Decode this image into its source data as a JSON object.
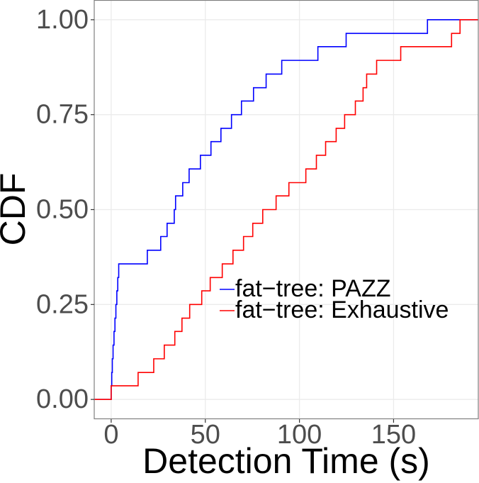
{
  "chart_data": {
    "type": "step",
    "x_label": "Detection Time (s)",
    "y_label": "CDF",
    "xlim": [
      -9,
      195
    ],
    "ylim": [
      -0.052,
      1.052
    ],
    "xticks": [
      0,
      50,
      100,
      150
    ],
    "yticks": [
      {
        "value": 0,
        "label": "0.00"
      },
      {
        "value": 0.25,
        "label": "0.25"
      },
      {
        "value": 0.5,
        "label": "0.50"
      },
      {
        "value": 0.75,
        "label": "0.75"
      },
      {
        "value": 1,
        "label": "1.00"
      }
    ],
    "grid": true,
    "legend": "inside",
    "series": [
      {
        "name": "fat−tree: PAZZ",
        "color": "#0000ff",
        "x": [
          0,
          0.3,
          0.6,
          1,
          1.5,
          2,
          2.5,
          3,
          3.5,
          4,
          19.2,
          26.3,
          29.7,
          33.5,
          34.2,
          38,
          41.4,
          47.4,
          53,
          58.3,
          63.9,
          69.2,
          75.6,
          82.3,
          90.6,
          109.8,
          124.8,
          168
        ],
        "values": [
          0.036,
          0.071,
          0.107,
          0.143,
          0.179,
          0.214,
          0.25,
          0.286,
          0.321,
          0.357,
          0.393,
          0.429,
          0.464,
          0.5,
          0.536,
          0.571,
          0.607,
          0.643,
          0.679,
          0.714,
          0.75,
          0.786,
          0.821,
          0.857,
          0.893,
          0.929,
          0.964,
          1.0
        ]
      },
      {
        "name": "fat−tree: Exhaustive",
        "color": "#ff0000",
        "x": [
          0,
          14.3,
          22.6,
          28.2,
          33.8,
          37.6,
          41.7,
          48.1,
          52.6,
          59,
          64.7,
          70.3,
          75.2,
          80.5,
          87.6,
          94.4,
          103.4,
          109,
          113.9,
          119.5,
          124,
          129.7,
          133.8,
          135.7,
          141,
          153.8,
          180.8,
          185.3
        ],
        "values": [
          0.036,
          0.071,
          0.107,
          0.143,
          0.179,
          0.214,
          0.25,
          0.286,
          0.321,
          0.357,
          0.393,
          0.429,
          0.464,
          0.5,
          0.536,
          0.571,
          0.607,
          0.643,
          0.679,
          0.714,
          0.75,
          0.786,
          0.821,
          0.857,
          0.893,
          0.929,
          0.964,
          1.0
        ]
      }
    ]
  }
}
